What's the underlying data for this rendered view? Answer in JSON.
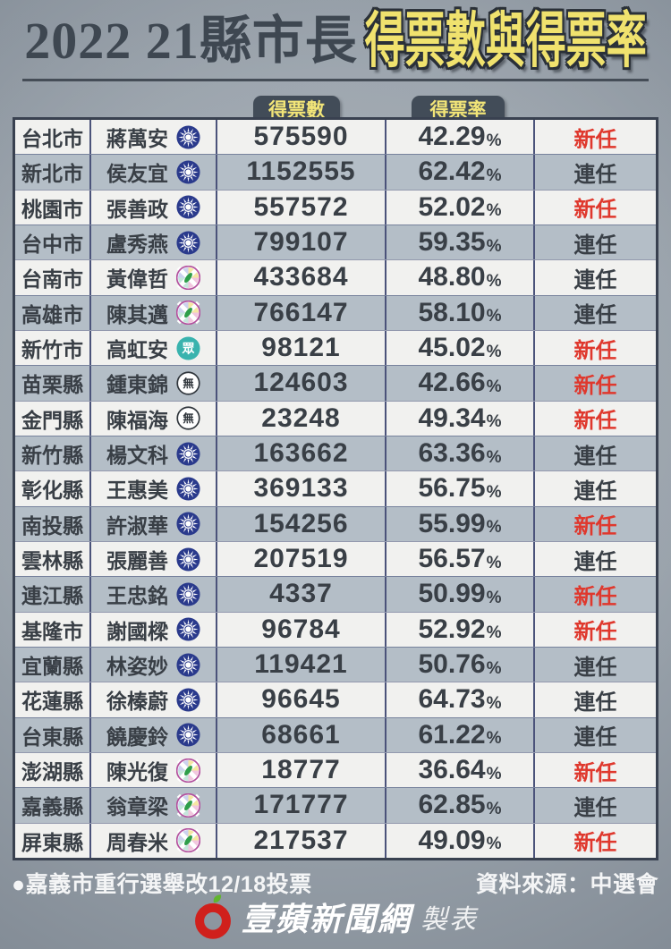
{
  "chart_data": {
    "type": "table",
    "title_main": "2022 21縣市長",
    "title_highlight": "得票數與得票率",
    "column_headers": {
      "votes": "得票數",
      "rate": "得票率"
    },
    "percent_sign": "%",
    "rows": [
      {
        "city": "台北市",
        "candidate": "蔣萬安",
        "party": "KMT",
        "votes": "575590",
        "rate": "42.29",
        "status": "新任",
        "status_style": "new"
      },
      {
        "city": "新北市",
        "candidate": "侯友宜",
        "party": "KMT",
        "votes": "1152555",
        "rate": "62.42",
        "status": "連任",
        "status_style": "incumbent"
      },
      {
        "city": "桃園市",
        "candidate": "張善政",
        "party": "KMT",
        "votes": "557572",
        "rate": "52.02",
        "status": "新任",
        "status_style": "new"
      },
      {
        "city": "台中市",
        "candidate": "盧秀燕",
        "party": "KMT",
        "votes": "799107",
        "rate": "59.35",
        "status": "連任",
        "status_style": "incumbent"
      },
      {
        "city": "台南市",
        "candidate": "黃偉哲",
        "party": "DPP",
        "votes": "433684",
        "rate": "48.80",
        "status": "連任",
        "status_style": "incumbent"
      },
      {
        "city": "高雄市",
        "candidate": "陳其邁",
        "party": "DPP",
        "votes": "766147",
        "rate": "58.10",
        "status": "連任",
        "status_style": "incumbent"
      },
      {
        "city": "新竹市",
        "candidate": "高虹安",
        "party": "TPP",
        "votes": "98121",
        "rate": "45.02",
        "status": "新任",
        "status_style": "new"
      },
      {
        "city": "苗栗縣",
        "candidate": "鍾東錦",
        "party": "IND",
        "votes": "124603",
        "rate": "42.66",
        "status": "新任",
        "status_style": "new"
      },
      {
        "city": "金門縣",
        "candidate": "陳福海",
        "party": "IND",
        "votes": "23248",
        "rate": "49.34",
        "status": "新任",
        "status_style": "new"
      },
      {
        "city": "新竹縣",
        "candidate": "楊文科",
        "party": "KMT",
        "votes": "163662",
        "rate": "63.36",
        "status": "連任",
        "status_style": "incumbent"
      },
      {
        "city": "彰化縣",
        "candidate": "王惠美",
        "party": "KMT",
        "votes": "369133",
        "rate": "56.75",
        "status": "連任",
        "status_style": "incumbent"
      },
      {
        "city": "南投縣",
        "candidate": "許淑華",
        "party": "KMT",
        "votes": "154256",
        "rate": "55.99",
        "status": "新任",
        "status_style": "new"
      },
      {
        "city": "雲林縣",
        "candidate": "張麗善",
        "party": "KMT",
        "votes": "207519",
        "rate": "56.57",
        "status": "連任",
        "status_style": "incumbent"
      },
      {
        "city": "連江縣",
        "candidate": "王忠銘",
        "party": "KMT",
        "votes": "4337",
        "rate": "50.99",
        "status": "新任",
        "status_style": "new"
      },
      {
        "city": "基隆市",
        "candidate": "謝國樑",
        "party": "KMT",
        "votes": "96784",
        "rate": "52.92",
        "status": "新任",
        "status_style": "new"
      },
      {
        "city": "宜蘭縣",
        "candidate": "林姿妙",
        "party": "KMT",
        "votes": "119421",
        "rate": "50.76",
        "status": "連任",
        "status_style": "incumbent"
      },
      {
        "city": "花蓮縣",
        "candidate": "徐榛蔚",
        "party": "KMT",
        "votes": "96645",
        "rate": "64.73",
        "status": "連任",
        "status_style": "incumbent"
      },
      {
        "city": "台東縣",
        "candidate": "饒慶鈴",
        "party": "KMT",
        "votes": "68661",
        "rate": "61.22",
        "status": "連任",
        "status_style": "incumbent"
      },
      {
        "city": "澎湖縣",
        "candidate": "陳光復",
        "party": "DPP",
        "votes": "18777",
        "rate": "36.64",
        "status": "新任",
        "status_style": "new"
      },
      {
        "city": "嘉義縣",
        "candidate": "翁章梁",
        "party": "DPP",
        "votes": "171777",
        "rate": "62.85",
        "status": "連任",
        "status_style": "incumbent"
      },
      {
        "city": "屏東縣",
        "candidate": "周春米",
        "party": "DPP",
        "votes": "217537",
        "rate": "49.09",
        "status": "新任",
        "status_style": "new"
      }
    ]
  },
  "parties": {
    "KMT": {
      "icon": "kmt-party-icon",
      "color": "#2a3a8c"
    },
    "DPP": {
      "icon": "dpp-party-icon",
      "color": "#b3519e",
      "taiwan_color": "#2f9e4a"
    },
    "TPP": {
      "icon": "tpp-party-icon",
      "color": "#39b3ae",
      "glyph": "眾"
    },
    "IND": {
      "icon": "independent-party-icon",
      "color": "#ffffff",
      "glyph": "無"
    }
  },
  "footer": {
    "note": "●嘉義市重行選舉改12/18投票",
    "source": "資料來源：中選會",
    "brand": "壹蘋新聞網",
    "brand_suffix": "製表"
  },
  "colors": {
    "status_new": "#df382d",
    "status_incumbent": "#3b4046",
    "title_highlight": "#f0e26e",
    "tab_bg": "#424c58",
    "tab_text": "#f2e578",
    "row_odd": "#f1f1ef",
    "row_even": "#b4bec7",
    "table_border": "#394150"
  }
}
